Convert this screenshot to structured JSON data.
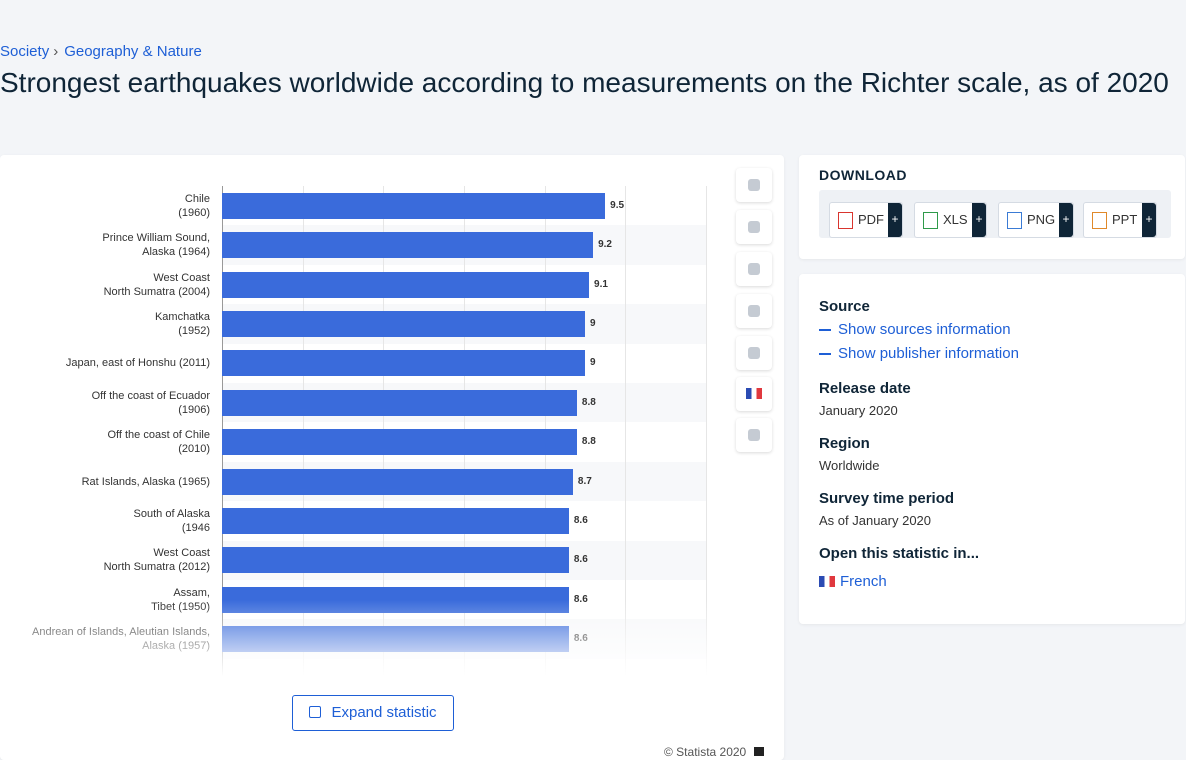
{
  "breadcrumb": [
    "Society",
    "Geography & Nature"
  ],
  "title": "Strongest earthquakes worldwide according to measurements on the Richter scale, as of 2020",
  "chart_data": {
    "type": "bar",
    "orientation": "horizontal",
    "categories": [
      "Chile\n(1960)",
      "Prince William Sound,\nAlaska (1964)",
      "West Coast\nNorth Sumatra (2004)",
      "Kamchatka\n(1952)",
      "Japan, east of Honshu (2011)",
      "Off the coast of Ecuador\n(1906)",
      "Off the coast of Chile\n(2010)",
      "Rat Islands, Alaska (1965)",
      "South of Alaska\n(1946",
      "West Coast\nNorth Sumatra (2012)",
      "Assam,\nTibet (1950)",
      "Andrean of Islands, Aleutian Islands,\nAlaska (1957)"
    ],
    "values": [
      9.5,
      9.2,
      9.1,
      9,
      9,
      8.8,
      8.8,
      8.7,
      8.6,
      8.6,
      8.6,
      8.6
    ],
    "color": "#3a6bdb",
    "xlim": [
      0,
      12
    ],
    "xticks": [
      0,
      2,
      4,
      6,
      8,
      10,
      12
    ],
    "grid": true
  },
  "actions": {
    "expand": "Expand statistic",
    "copyright": "© Statista 2020"
  },
  "download": {
    "title": "DOWNLOAD",
    "formats": [
      "PDF",
      "XLS",
      "PNG",
      "PPT"
    ],
    "more": "+"
  },
  "details": {
    "source": "Source",
    "links": [
      "Show sources information",
      "Show publisher information"
    ],
    "fields": [
      {
        "label": "Release date",
        "value": "January 2020"
      },
      {
        "label": "Region",
        "value": "Worldwide"
      },
      {
        "label": "Survey time period",
        "value": "As of January 2020"
      }
    ],
    "open_in": "Open this statistic in...",
    "language": "French"
  }
}
